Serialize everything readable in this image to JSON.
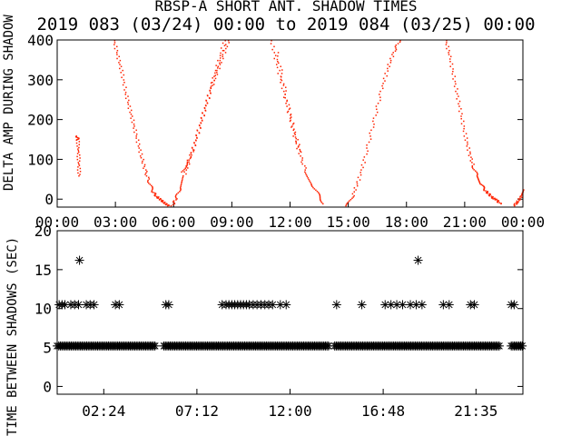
{
  "title": "RBSP-A SHORT ANT. SHADOW TIMES",
  "subtitle": "2019 083 (03/24) 00:00 to 2019 084 (03/25) 00:00",
  "chart_data": [
    {
      "type": "scatter",
      "ylabel": "DELTA AMP DURING SHADOW",
      "xlim": [
        0,
        24
      ],
      "ylim": [
        -20,
        400
      ],
      "xticks": [
        "00:00",
        "03:00",
        "06:00",
        "09:00",
        "12:00",
        "15:00",
        "18:00",
        "21:00",
        "00:00"
      ],
      "yticks": [
        0,
        100,
        200,
        300,
        400
      ],
      "color": "#ff2200",
      "grid": false,
      "series": [
        {
          "x": [
            1.0,
            1.03,
            1.06,
            1.08,
            1.1
          ],
          "y": [
            160,
            150,
            120,
            90,
            60
          ]
        },
        {
          "x": [
            2.9,
            3.1,
            3.3,
            3.5,
            3.7,
            3.9,
            4.1,
            4.3,
            4.5,
            4.7,
            4.9,
            5.1,
            5.3,
            5.5,
            5.7
          ],
          "y": [
            400,
            360,
            320,
            270,
            230,
            190,
            150,
            110,
            75,
            45,
            20,
            8,
            0,
            -8,
            -15
          ]
        },
        {
          "x": [
            5.9,
            6.1,
            6.3,
            6.5,
            6.8,
            7.1,
            7.4,
            7.7,
            8.0,
            8.3,
            8.6
          ],
          "y": [
            -15,
            5,
            30,
            60,
            100,
            150,
            200,
            250,
            300,
            350,
            400
          ]
        },
        {
          "x": [
            6.4,
            6.7,
            7.0,
            7.3,
            7.6,
            7.9,
            8.2,
            8.5,
            8.8
          ],
          "y": [
            70,
            95,
            130,
            180,
            230,
            280,
            320,
            360,
            400
          ]
        },
        {
          "x": [
            11.0,
            11.3,
            11.6,
            11.9,
            12.2,
            12.5,
            12.8,
            13.1,
            13.4,
            13.7
          ],
          "y": [
            400,
            340,
            280,
            220,
            160,
            110,
            70,
            40,
            15,
            -10
          ]
        },
        {
          "x": [
            11.3,
            11.6,
            11.9,
            12.2,
            12.5
          ],
          "y": [
            370,
            300,
            230,
            170,
            120
          ]
        },
        {
          "x": [
            14.9,
            15.2,
            15.5,
            15.8,
            16.1,
            16.4,
            16.7,
            17.0,
            17.3,
            17.6
          ],
          "y": [
            -15,
            10,
            50,
            100,
            160,
            220,
            280,
            330,
            370,
            400
          ]
        },
        {
          "x": [
            20.0,
            20.2,
            20.4,
            20.6,
            20.8,
            21.0,
            21.2,
            21.4,
            21.6,
            21.8,
            22.0,
            22.2,
            22.4,
            22.6,
            22.8
          ],
          "y": [
            400,
            360,
            310,
            260,
            210,
            160,
            120,
            85,
            60,
            40,
            25,
            15,
            5,
            0,
            -10
          ]
        },
        {
          "x": [
            23.5,
            23.7,
            23.9,
            24.0
          ],
          "y": [
            -15,
            -5,
            10,
            25
          ]
        }
      ]
    },
    {
      "type": "scatter",
      "ylabel": "TIME BETWEEN SHADOWS (SEC)",
      "xlim": [
        0,
        24
      ],
      "ylim": [
        -1,
        20
      ],
      "xticks": [
        "02:24",
        "07:12",
        "12:00",
        "16:48",
        "21:35"
      ],
      "yticks": [
        0,
        5,
        10,
        15,
        20
      ],
      "marker": "*",
      "series": [
        {
          "x": [
            0.1,
            0.25,
            0.4,
            0.7,
            0.9,
            1.1,
            1.5,
            1.7,
            1.9,
            3.0,
            3.2,
            5.6,
            5.75,
            8.5,
            8.7,
            8.85,
            9.0,
            9.15,
            9.3,
            9.45,
            9.6,
            9.75,
            9.9,
            10.1,
            10.3,
            10.5,
            10.7,
            10.9,
            11.1,
            11.5,
            11.8,
            14.4,
            15.7,
            16.9,
            17.2,
            17.5,
            17.8,
            18.2,
            18.5,
            18.8,
            19.9,
            20.2,
            21.3,
            21.5,
            23.4,
            23.55
          ],
          "y": [
            10.5,
            10.5,
            10.5,
            10.5,
            10.5,
            10.5,
            10.5,
            10.5,
            10.5,
            10.5,
            10.5,
            10.5,
            10.5,
            10.5,
            10.5,
            10.5,
            10.5,
            10.5,
            10.5,
            10.5,
            10.5,
            10.5,
            10.5,
            10.5,
            10.5,
            10.5,
            10.5,
            10.5,
            10.5,
            10.5,
            10.5,
            10.5,
            10.5,
            10.5,
            10.5,
            10.5,
            10.5,
            10.5,
            10.5,
            10.5,
            10.5,
            10.5,
            10.5,
            10.5,
            10.5,
            10.5
          ]
        },
        {
          "x": [
            1.15,
            18.6
          ],
          "y": [
            16.2,
            16.2
          ]
        },
        {
          "x_range": [
            [
              0.0,
              5.1
            ],
            [
              5.5,
              14.0
            ],
            [
              14.3,
              22.8
            ],
            [
              23.4,
              24.0
            ]
          ],
          "y": 5.2
        }
      ]
    }
  ]
}
